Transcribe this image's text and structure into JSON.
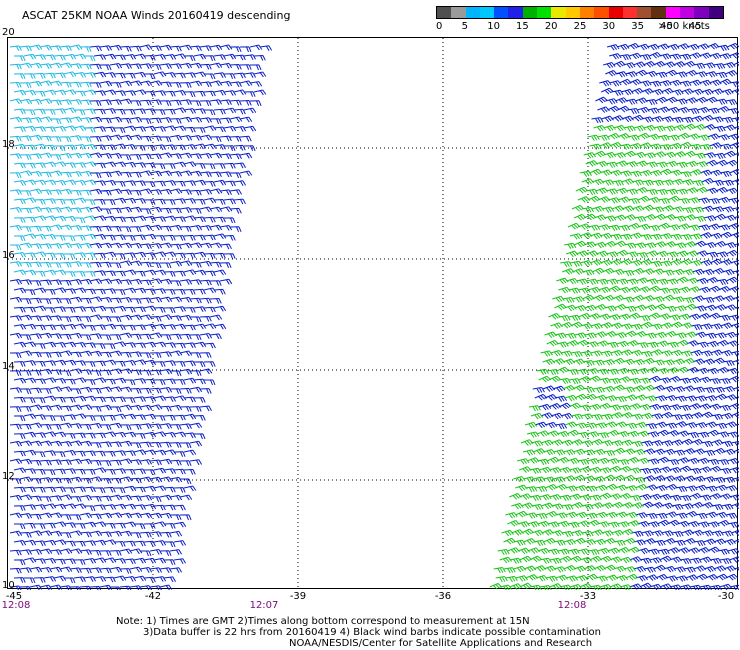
{
  "title": "ASCAT 25KM NOAA Winds 20160419 descending",
  "colors": {
    "barb_cyan": "#1fb8e0",
    "barb_blue": "#0a1fc8",
    "barb_green": "#19c419",
    "grid": "#000000",
    "time_label": "#7a0a7a"
  },
  "legend": {
    "segments": [
      "#505050",
      "#9a9a9a",
      "#00b4ff",
      "#00c8ff",
      "#0050ff",
      "#2020e8",
      "#00b000",
      "#00e000",
      "#e8e800",
      "#ffc800",
      "#ff8000",
      "#ff5000",
      "#e80000",
      "#ff3030",
      "#a05030",
      "#603010",
      "#ff00ff",
      "#c000e0",
      "#8000c0",
      "#400080"
    ],
    "labels": [
      "0",
      "5",
      "10",
      "15",
      "20",
      "25",
      "30",
      "35",
      "40",
      "45",
      ">50 knots"
    ]
  },
  "lat_labels": [
    "20",
    "18",
    "16",
    "14",
    "12",
    "10"
  ],
  "lon_labels": [
    "-45",
    "-42",
    "-39",
    "-36",
    "-33",
    "-30"
  ],
  "time_labels": [
    "12:08",
    "12:07",
    "12:08"
  ],
  "notes": {
    "line1": "Note: 1) Times are GMT 2)Times along bottom correspond to measurement at 15N",
    "line2": "3)Data buffer is 22 hrs from 20160419 4) Black wind barbs indicate possible contamination",
    "line3": "NOAA/NESDIS/Center for Satellite Applications and Research"
  },
  "swaths": [
    {
      "name": "western-swath",
      "colors": [
        "cyan",
        "blue"
      ]
    },
    {
      "name": "eastern-swath",
      "colors": [
        "green",
        "blue"
      ]
    }
  ]
}
